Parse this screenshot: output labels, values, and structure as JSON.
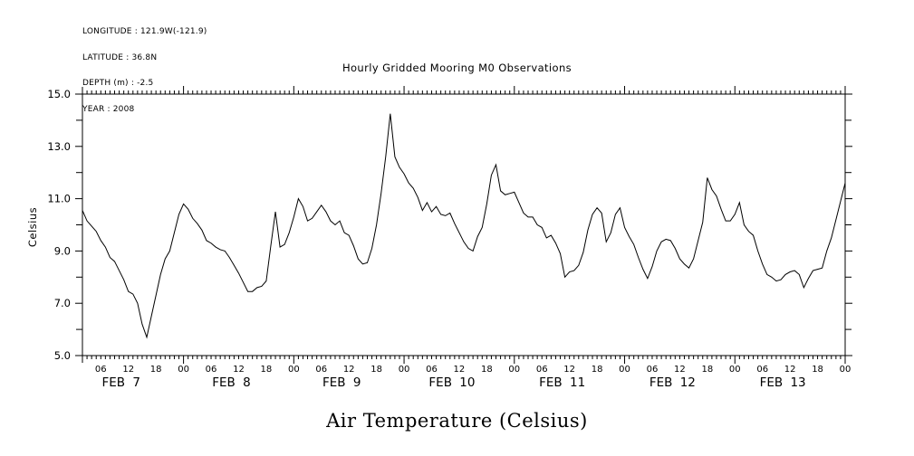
{
  "header": {
    "lines": [
      "LONGITUDE : 121.9W(-121.9)",
      "LATITUDE : 36.8N",
      "DEPTH (m) : -2.5",
      "YEAR : 2008"
    ]
  },
  "title": "Hourly Gridded Mooring M0 Observations",
  "bottom_title": "Air Temperature (Celsius)",
  "colors": {
    "foreground": "#000000",
    "background": "#ffffff",
    "line": "#000000"
  },
  "chart_data": {
    "type": "line",
    "title": "Hourly Gridded Mooring M0 Observations",
    "series_name": "Air Temperature (Celsius)",
    "ylabel": "Celsius",
    "ylim": [
      5.0,
      15.0
    ],
    "y_major_ticks": [
      5.0,
      7.0,
      9.0,
      11.0,
      13.0,
      15.0
    ],
    "y_minor_tick_interval": 1.0,
    "grid": false,
    "legend": "none",
    "x_start": "2008-02-07 02:00",
    "x_end": "2008-02-14 00:00",
    "x_step_hours": 1,
    "x_start_hour_offset": 2,
    "x_end_hour_offset": 168,
    "x_hour_tick_labels": [
      "06",
      "12",
      "18",
      "00"
    ],
    "x_day_labels": [
      "FEB 7",
      "FEB 8",
      "FEB 9",
      "FEB 10",
      "FEB 11",
      "FEB 12",
      "FEB 13"
    ],
    "values": [
      10.55,
      10.15,
      9.95,
      9.75,
      9.4,
      9.15,
      8.75,
      8.6,
      8.25,
      7.9,
      7.45,
      7.35,
      7.0,
      6.2,
      5.7,
      6.5,
      7.3,
      8.1,
      8.7,
      9.0,
      9.7,
      10.4,
      10.8,
      10.6,
      10.25,
      10.05,
      9.8,
      9.4,
      9.3,
      9.15,
      9.05,
      9.0,
      8.75,
      8.45,
      8.15,
      7.8,
      7.45,
      7.45,
      7.6,
      7.65,
      7.85,
      9.2,
      10.5,
      9.15,
      9.25,
      9.7,
      10.3,
      11.0,
      10.7,
      10.15,
      10.25,
      10.5,
      10.75,
      10.5,
      10.15,
      10.0,
      10.15,
      9.7,
      9.6,
      9.2,
      8.7,
      8.5,
      8.55,
      9.1,
      10.0,
      11.2,
      12.6,
      14.25,
      12.6,
      12.2,
      11.95,
      11.6,
      11.4,
      11.05,
      10.55,
      10.85,
      10.5,
      10.7,
      10.4,
      10.35,
      10.45,
      10.05,
      9.7,
      9.35,
      9.1,
      9.0,
      9.55,
      9.9,
      10.8,
      11.9,
      12.3,
      11.3,
      11.15,
      11.2,
      11.25,
      10.85,
      10.45,
      10.3,
      10.3,
      10.0,
      9.9,
      9.5,
      9.6,
      9.3,
      8.9,
      8.0,
      8.2,
      8.25,
      8.45,
      8.95,
      9.8,
      10.4,
      10.65,
      10.45,
      9.35,
      9.7,
      10.4,
      10.65,
      9.9,
      9.55,
      9.25,
      8.75,
      8.3,
      7.95,
      8.4,
      9.0,
      9.35,
      9.45,
      9.4,
      9.1,
      8.7,
      8.5,
      8.35,
      8.7,
      9.4,
      10.1,
      11.8,
      11.35,
      11.1,
      10.6,
      10.15,
      10.15,
      10.4,
      10.85,
      10.0,
      9.75,
      9.6,
      9.0,
      8.5,
      8.1,
      8.0,
      7.85,
      7.9,
      8.1,
      8.2,
      8.25,
      8.1,
      7.6,
      7.95,
      8.25,
      8.3,
      8.35,
      9.0,
      9.5,
      10.2,
      10.9,
      11.6
    ]
  }
}
